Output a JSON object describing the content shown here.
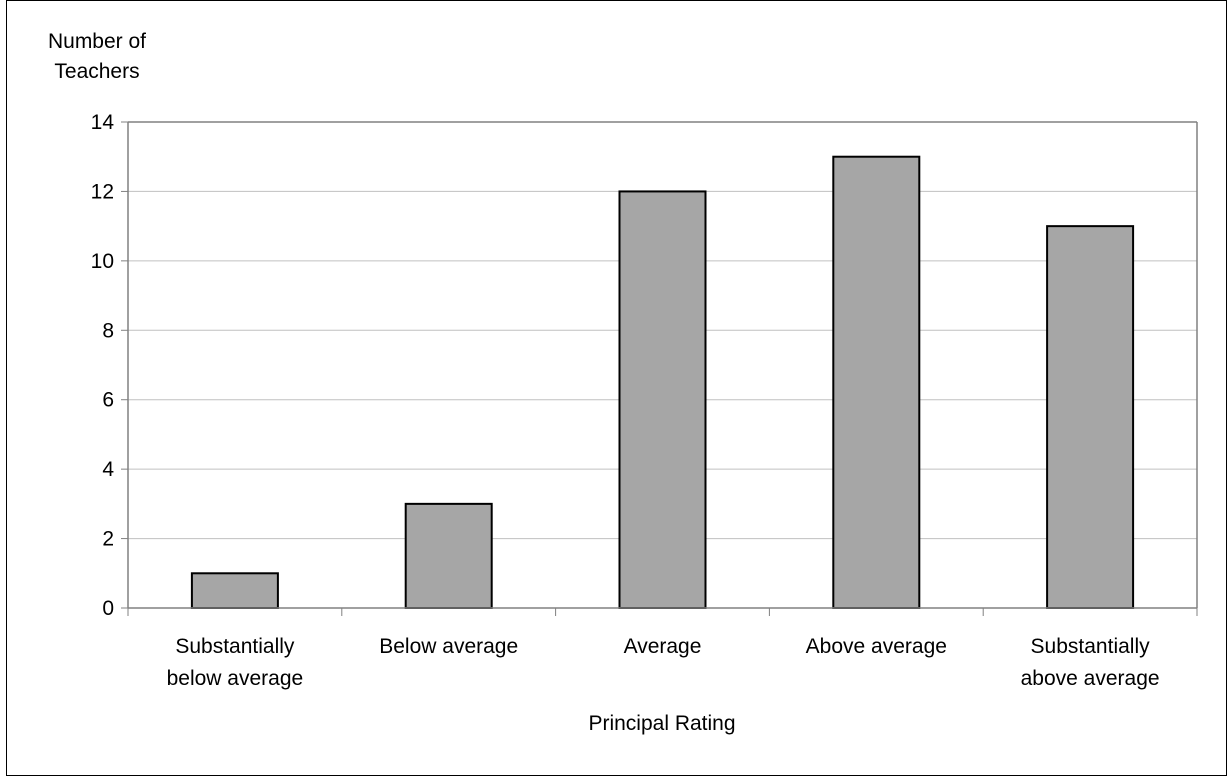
{
  "chart_data": {
    "type": "bar",
    "title": "",
    "ylabel_lines": [
      "Number of",
      "Teachers"
    ],
    "xlabel": "Principal Rating",
    "categories": [
      [
        "Substantially",
        "below average"
      ],
      [
        "Below average"
      ],
      [
        "Average"
      ],
      [
        "Above average"
      ],
      [
        "Substantially",
        "above average"
      ]
    ],
    "values": [
      1,
      3,
      12,
      13,
      11
    ],
    "ylim": [
      0,
      14
    ],
    "yticks": [
      0,
      2,
      4,
      6,
      8,
      10,
      12,
      14
    ],
    "grid": true,
    "legend": "none",
    "colors": {
      "bar_fill": "#a6a6a6",
      "bar_stroke": "#000000",
      "grid": "#c0c0c0",
      "axis": "#808080",
      "frame": "#000000"
    }
  }
}
